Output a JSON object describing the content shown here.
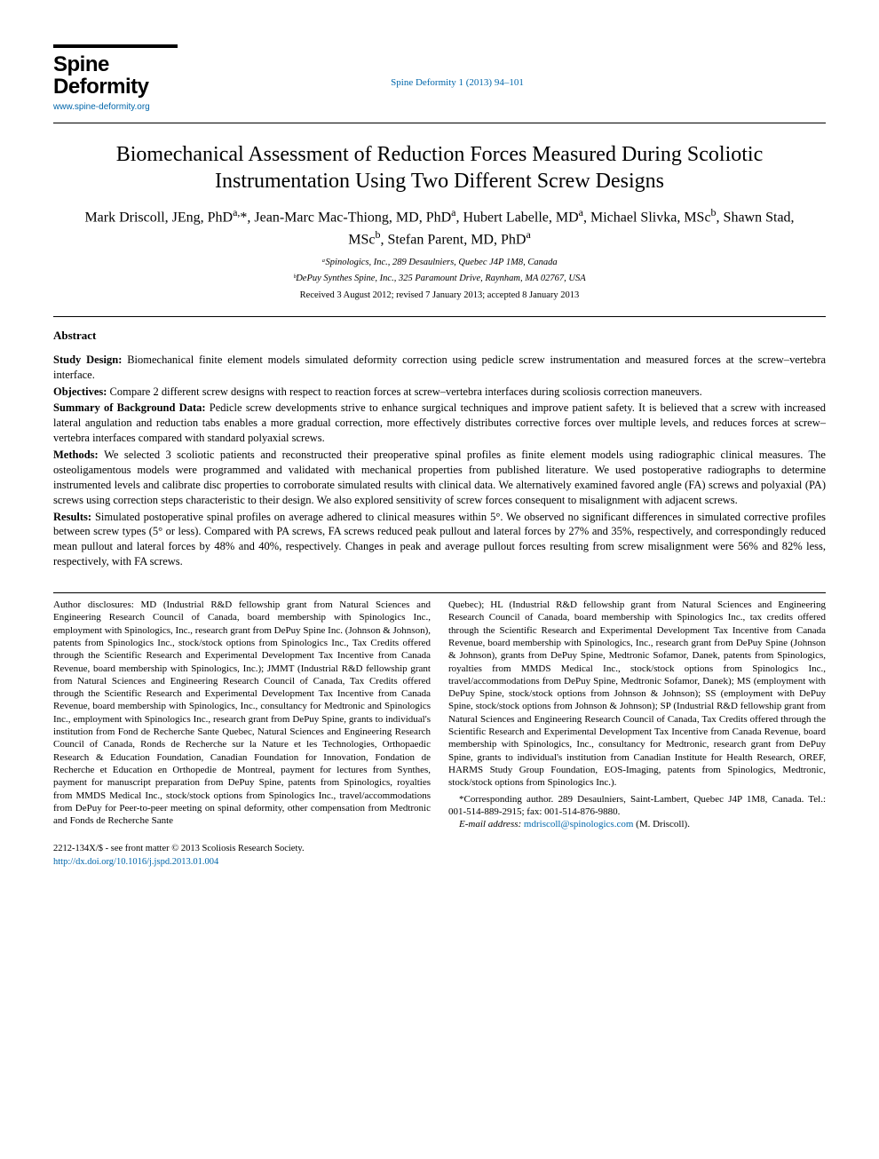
{
  "journal": {
    "logo_line1": "Spine",
    "logo_line2": "Deformity",
    "url": "www.spine-deformity.org",
    "citation": "Spine Deformity 1 (2013) 94–101"
  },
  "article": {
    "title": "Biomechanical Assessment of Reduction Forces Measured During Scoliotic Instrumentation Using Two Different Screw Designs",
    "authors_html": "Mark Driscoll, JEng, PhD<sup>a,</sup>*, Jean-Marc Mac-Thiong, MD, PhD<sup>a</sup>, Hubert Labelle, MD<sup>a</sup>, Michael Slivka, MSc<sup>b</sup>, Shawn Stad, MSc<sup>b</sup>, Stefan Parent, MD, PhD<sup>a</sup>",
    "affiliations": [
      "ᵃSpinologics, Inc., 289 Desaulniers, Quebec J4P 1M8, Canada",
      "ᵇDePuy Synthes Spine, Inc., 325 Paramount Drive, Raynham, MA 02767, USA"
    ],
    "dates": "Received 3 August 2012; revised 7 January 2013; accepted 8 January 2013"
  },
  "abstract": {
    "heading": "Abstract",
    "sections": [
      {
        "label": "Study Design:",
        "text": "Biomechanical finite element models simulated deformity correction using pedicle screw instrumentation and measured forces at the screw–vertebra interface."
      },
      {
        "label": "Objectives:",
        "text": "Compare 2 different screw designs with respect to reaction forces at screw–vertebra interfaces during scoliosis correction maneuvers."
      },
      {
        "label": "Summary of Background Data:",
        "text": "Pedicle screw developments strive to enhance surgical techniques and improve patient safety. It is believed that a screw with increased lateral angulation and reduction tabs enables a more gradual correction, more effectively distributes corrective forces over multiple levels, and reduces forces at screw–vertebra interfaces compared with standard polyaxial screws."
      },
      {
        "label": "Methods:",
        "text": "We selected 3 scoliotic patients and reconstructed their preoperative spinal profiles as finite element models using radiographic clinical measures. The osteoligamentous models were programmed and validated with mechanical properties from published literature. We used postoperative radiographs to determine instrumented levels and calibrate disc properties to corroborate simulated results with clinical data. We alternatively examined favored angle (FA) screws and polyaxial (PA) screws using correction steps characteristic to their design. We also explored sensitivity of screw forces consequent to misalignment with adjacent screws."
      },
      {
        "label": "Results:",
        "text": "Simulated postoperative spinal profiles on average adhered to clinical measures within 5°. We observed no significant differences in simulated corrective profiles between screw types (5° or less). Compared with PA screws, FA screws reduced peak pullout and lateral forces by 27% and 35%, respectively, and correspondingly reduced mean pullout and lateral forces by 48% and 40%, respectively. Changes in peak and average pullout forces resulting from screw misalignment were 56% and 82% less, respectively, with FA screws."
      }
    ]
  },
  "disclosures": {
    "col1": "Author disclosures: MD (Industrial R&D fellowship grant from Natural Sciences and Engineering Research Council of Canada, board membership with Spinologics Inc., employment with Spinologics, Inc., research grant from DePuy Spine Inc. (Johnson & Johnson), patents from Spinologics Inc., stock/stock options from Spinologics Inc., Tax Credits offered through the Scientific Research and Experimental Development Tax Incentive from Canada Revenue, board membership with Spinologics, Inc.); JMMT (Industrial R&D fellowship grant from Natural Sciences and Engineering Research Council of Canada, Tax Credits offered through the Scientific Research and Experimental Development Tax Incentive from Canada Revenue, board membership with Spinologics, Inc., consultancy for Medtronic and Spinologics Inc., employment with Spinologics Inc., research grant from DePuy Spine, grants to individual's institution from Fond de Recherche Sante Quebec, Natural Sciences and Engineering Research Council of Canada, Ronds de Recherche sur la Nature et les Technologies, Orthopaedic Research & Education Foundation, Canadian Foundation for Innovation, Fondation de Recherche et Education en Orthopedie de Montreal, payment for lectures from Synthes, payment for manuscript preparation from DePuy Spine, patents from Spinologics, royalties from MMDS Medical Inc., stock/stock options from Spinologics Inc., travel/accommodations from DePuy for Peer-to-peer meeting on spinal deformity, other compensation from Medtronic and Fonds de Recherche Sante",
    "col2": "Quebec); HL (Industrial R&D fellowship grant from Natural Sciences and Engineering Research Council of Canada, board membership with Spinologics Inc., tax credits offered through the Scientific Research and Experimental Development Tax Incentive from Canada Revenue, board membership with Spinologics, Inc., research grant from DePuy Spine (Johnson & Johnson), grants from DePuy Spine, Medtronic Sofamor, Danek, patents from Spinologics, royalties from MMDS Medical Inc., stock/stock options from Spinologics Inc., travel/accommodations from DePuy Spine, Medtronic Sofamor, Danek); MS (employment with DePuy Spine, stock/stock options from Johnson & Johnson); SS (employment with DePuy Spine, stock/stock options from Johnson & Johnson); SP (Industrial R&D fellowship grant from Natural Sciences and Engineering Research Council of Canada, Tax Credits offered through the Scientific Research and Experimental Development Tax Incentive from Canada Revenue, board membership with Spinologics, Inc., consultancy for Medtronic, research grant from DePuy Spine, grants to individual's institution from Canadian Institute for Health Research, OREF, HARMS Study Group Foundation, EOS-Imaging, patents from Spinologics, Medtronic, stock/stock options from Spinologics Inc.).",
    "corresponding": "*Corresponding author. 289 Desaulniers, Saint-Lambert, Quebec J4P 1M8, Canada. Tel.: 001-514-889-2915; fax: 001-514-876-9880.",
    "email_label": "E-mail address:",
    "email": "mdriscoll@spinologics.com",
    "email_name": "(M. Driscoll)."
  },
  "footer": {
    "copyright": "2212-134X/$ - see front matter © 2013 Scoliosis Research Society.",
    "doi": "http://dx.doi.org/10.1016/j.jspd.2013.01.004"
  },
  "colors": {
    "link": "#0066aa",
    "text": "#000000",
    "background": "#ffffff"
  }
}
